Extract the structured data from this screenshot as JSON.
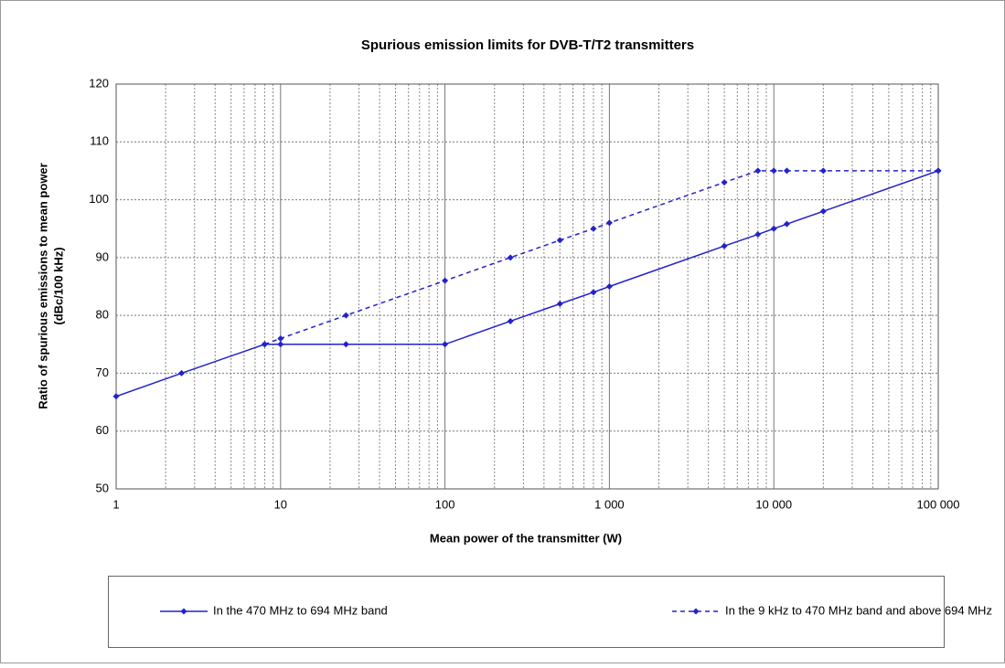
{
  "chart_data": {
    "type": "line",
    "title": "Spurious emission limits for DVB-T/T2 transmitters",
    "xlabel": "Mean power of the transmitter (W)",
    "ylabel": [
      "Ratio of spurious emissions to mean power",
      "(dBc/100 kHz)"
    ],
    "xscale": "log",
    "xlim": [
      1,
      100000
    ],
    "xticks": [
      1,
      10,
      100,
      {
        "value": 1000,
        "label": "1 000"
      },
      {
        "value": 10000,
        "label": "10 000"
      },
      {
        "value": 100000,
        "label": "100 000"
      }
    ],
    "xminorticks": [
      2,
      3,
      4,
      5,
      6,
      7,
      8,
      9,
      20,
      30,
      40,
      50,
      60,
      70,
      80,
      90,
      200,
      300,
      400,
      500,
      600,
      700,
      800,
      900,
      2000,
      3000,
      4000,
      5000,
      6000,
      7000,
      8000,
      9000,
      20000,
      30000,
      40000,
      50000,
      60000,
      70000,
      80000,
      90000
    ],
    "ylim": [
      50,
      120
    ],
    "yticks": [
      50,
      60,
      70,
      80,
      90,
      100,
      110,
      120
    ],
    "grid": true,
    "legend": "bottom",
    "series": [
      {
        "name": "In the 470 MHz to 694 MHz band",
        "color": "#2222cc",
        "dash": false,
        "x": [
          1,
          2.5,
          8,
          10,
          25,
          100,
          250,
          500,
          800,
          1000,
          5000,
          8000,
          10000,
          12000,
          20000,
          100000
        ],
        "values": [
          66,
          70,
          75,
          75,
          75,
          75,
          79,
          82,
          84,
          85,
          92,
          94,
          95,
          95.8,
          98,
          105
        ]
      },
      {
        "name": "In the 9 kHz to 470 MHz band and above 694 MHz",
        "color": "#2222cc",
        "dash": true,
        "x": [
          8,
          10,
          25,
          100,
          250,
          500,
          800,
          1000,
          5000,
          8000,
          10000,
          12000,
          20000,
          100000
        ],
        "values": [
          75,
          76,
          80,
          86,
          90,
          93,
          95,
          96,
          103,
          105,
          105,
          105,
          105,
          105
        ]
      }
    ]
  }
}
